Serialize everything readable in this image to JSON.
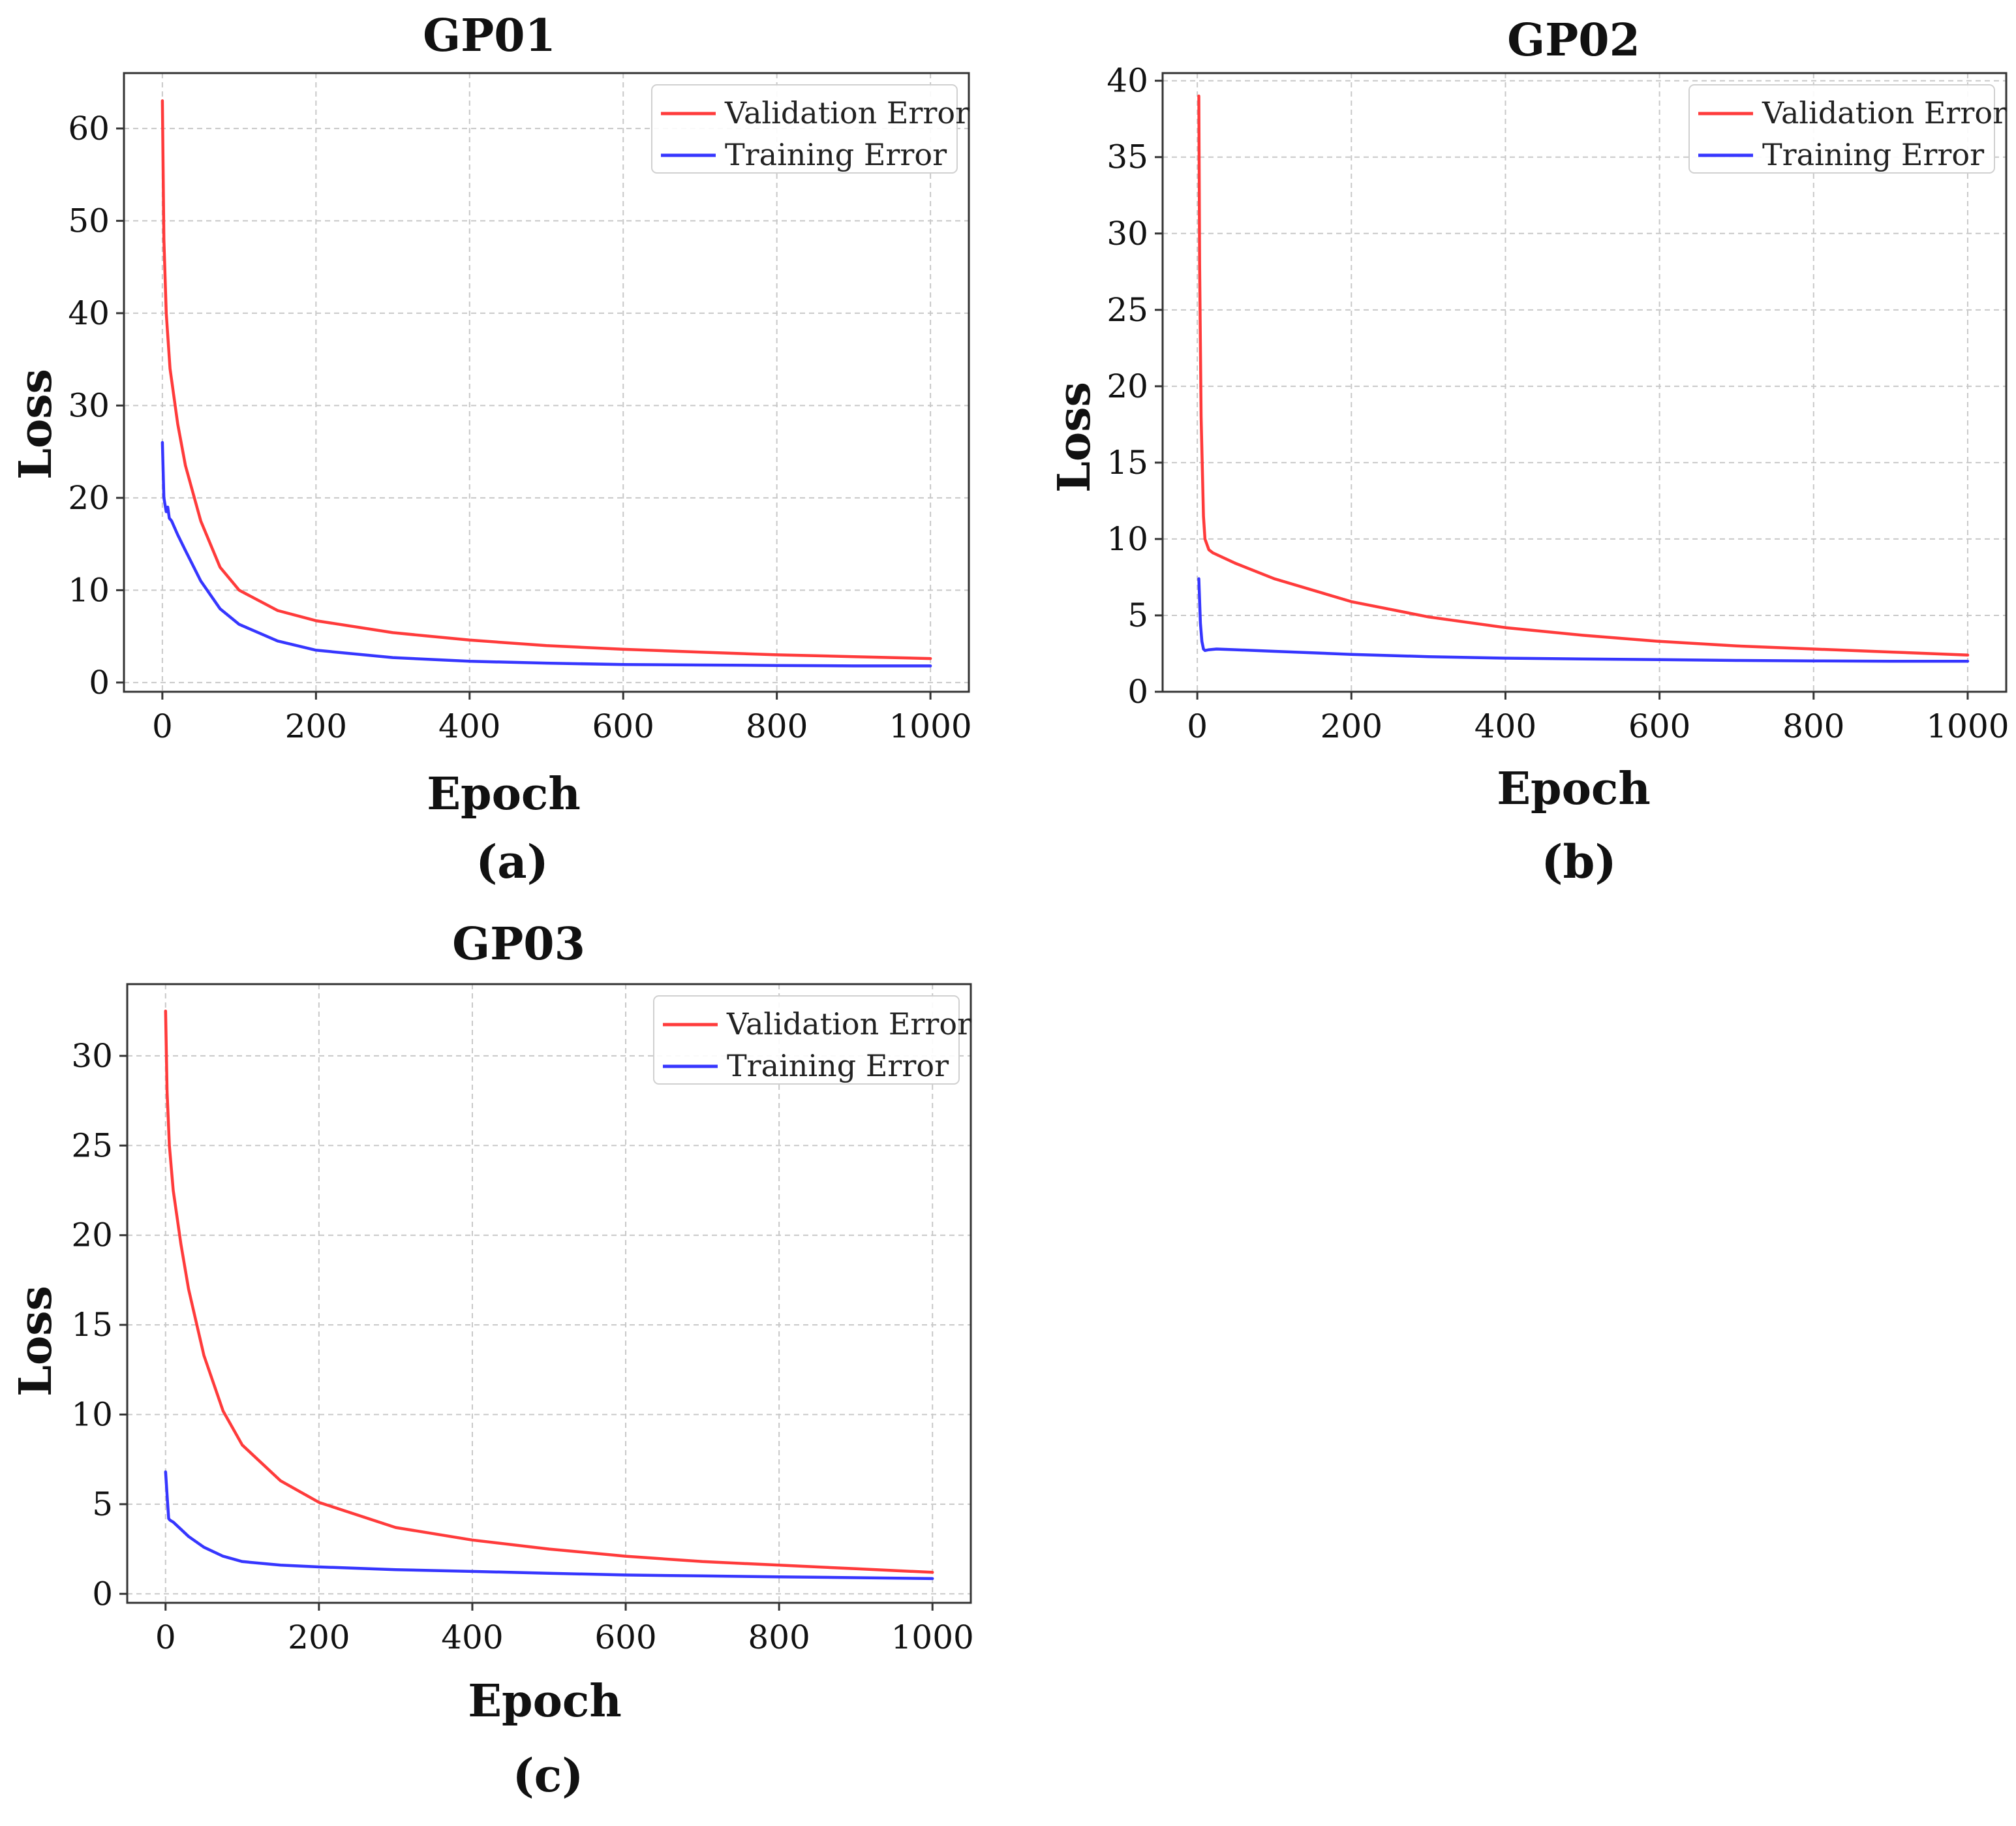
{
  "colors": {
    "validation": "#ff3b3b",
    "training": "#3636ff",
    "grid": "#c8c8c8",
    "frame": "#333333"
  },
  "chart_data": [
    {
      "type": "line",
      "title": "GP01",
      "caption": "(a)",
      "xlabel": "Epoch",
      "ylabel": "Loss",
      "xlim": [
        -50,
        1050
      ],
      "ylim": [
        -1,
        66
      ],
      "xticks": [
        0,
        200,
        400,
        600,
        800,
        1000
      ],
      "yticks": [
        0,
        10,
        20,
        30,
        40,
        50,
        60
      ],
      "grid": true,
      "legend_position": "top-right",
      "series": [
        {
          "name": "Validation Error",
          "color_key": "validation",
          "x": [
            0,
            2,
            5,
            10,
            20,
            30,
            50,
            75,
            100,
            150,
            200,
            300,
            400,
            500,
            600,
            700,
            800,
            900,
            1000
          ],
          "y": [
            63,
            48,
            40,
            34,
            28,
            23.5,
            17.5,
            12.5,
            10,
            7.8,
            6.7,
            5.4,
            4.6,
            4.0,
            3.6,
            3.3,
            3.0,
            2.8,
            2.6
          ]
        },
        {
          "name": "Training Error",
          "color_key": "training",
          "x": [
            0,
            2,
            5,
            7,
            9,
            12,
            20,
            30,
            50,
            75,
            100,
            150,
            200,
            300,
            400,
            500,
            600,
            700,
            800,
            900,
            1000
          ],
          "y": [
            26,
            20,
            18.5,
            19,
            17.8,
            17.5,
            16,
            14.3,
            11,
            8,
            6.3,
            4.5,
            3.5,
            2.7,
            2.3,
            2.1,
            1.95,
            1.9,
            1.85,
            1.8,
            1.8
          ]
        }
      ]
    },
    {
      "type": "line",
      "title": "GP02",
      "caption": "(b)",
      "xlabel": "Epoch",
      "ylabel": "Loss",
      "xlim": [
        -45,
        1050
      ],
      "ylim": [
        0,
        40.5
      ],
      "xticks": [
        0,
        200,
        400,
        600,
        800,
        1000
      ],
      "yticks": [
        0,
        5,
        10,
        15,
        20,
        25,
        30,
        35,
        40
      ],
      "grid": true,
      "legend_position": "top-right",
      "series": [
        {
          "name": "Validation Error",
          "color_key": "validation",
          "x": [
            2,
            3,
            5,
            8,
            10,
            15,
            20,
            50,
            100,
            200,
            300,
            400,
            500,
            600,
            700,
            800,
            900,
            1000
          ],
          "y": [
            39,
            28,
            18,
            11.5,
            10,
            9.3,
            9.1,
            8.4,
            7.4,
            5.9,
            4.9,
            4.2,
            3.7,
            3.3,
            3.0,
            2.8,
            2.6,
            2.4
          ]
        },
        {
          "name": "Training Error",
          "color_key": "training",
          "x": [
            2,
            4,
            6,
            8,
            10,
            15,
            25,
            50,
            100,
            200,
            300,
            400,
            500,
            600,
            700,
            800,
            900,
            1000
          ],
          "y": [
            7.4,
            4.5,
            3.3,
            2.8,
            2.7,
            2.75,
            2.8,
            2.75,
            2.65,
            2.45,
            2.3,
            2.2,
            2.15,
            2.1,
            2.05,
            2.02,
            2.0,
            2.0
          ]
        }
      ]
    },
    {
      "type": "line",
      "title": "GP03",
      "caption": "(c)",
      "xlabel": "Epoch",
      "ylabel": "Loss",
      "xlim": [
        -50,
        1050
      ],
      "ylim": [
        -0.5,
        34
      ],
      "xticks": [
        0,
        200,
        400,
        600,
        800,
        1000
      ],
      "yticks": [
        0,
        5,
        10,
        15,
        20,
        25,
        30
      ],
      "grid": true,
      "legend_position": "top-right",
      "series": [
        {
          "name": "Validation Error",
          "color_key": "validation",
          "x": [
            0,
            2,
            5,
            10,
            20,
            30,
            50,
            75,
            100,
            150,
            200,
            300,
            400,
            500,
            600,
            700,
            800,
            900,
            1000
          ],
          "y": [
            32.5,
            28,
            25,
            22.5,
            19.5,
            17,
            13.3,
            10.2,
            8.3,
            6.3,
            5.1,
            3.7,
            3.0,
            2.5,
            2.1,
            1.8,
            1.6,
            1.4,
            1.2
          ]
        },
        {
          "name": "Training Error",
          "color_key": "training",
          "x": [
            0,
            2,
            4,
            6,
            10,
            20,
            30,
            50,
            75,
            100,
            150,
            200,
            300,
            400,
            500,
            600,
            700,
            800,
            900,
            1000
          ],
          "y": [
            6.8,
            5.5,
            4.2,
            4.1,
            4.0,
            3.6,
            3.2,
            2.6,
            2.1,
            1.8,
            1.6,
            1.5,
            1.35,
            1.25,
            1.15,
            1.05,
            1.0,
            0.95,
            0.9,
            0.85
          ]
        }
      ]
    }
  ]
}
